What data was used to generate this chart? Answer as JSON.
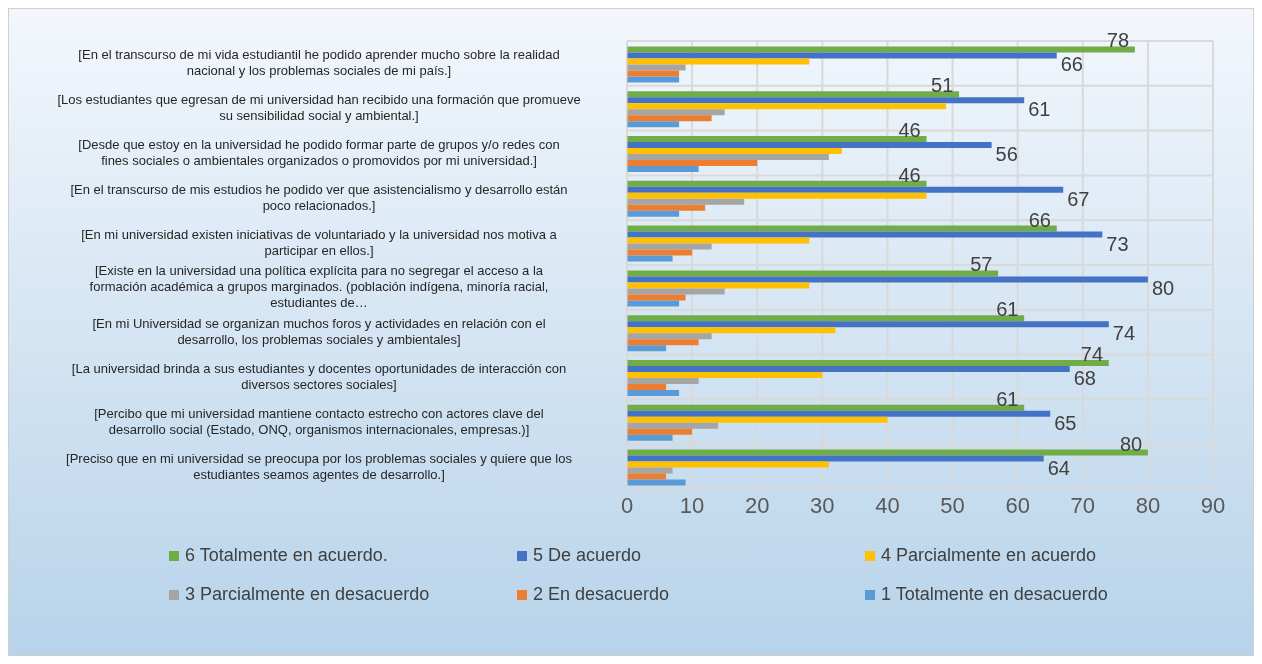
{
  "chart_data": {
    "type": "bar",
    "orientation": "horizontal",
    "categories": [
      "[En el transcurso de mi vida estudiantil he podido aprender mucho sobre la realidad nacional y los problemas sociales de mi país.]",
      "[Los estudiantes que egresan de mi universidad han recibido una formación que promueve su sensibilidad social y ambiental.]",
      "[Desde que estoy en la universidad he podido formar parte de grupos y/o redes con fines sociales o ambientales organizados o promovidos por mi universidad.]",
      "[En el transcurso de mis estudios he podido ver que asistencialismo y desarrollo están poco relacionados.]",
      "[En mi universidad existen iniciativas de voluntariado y la universidad nos motiva a participar en ellos.]",
      "[Existe en la universidad una política explícita para no segregar el acceso a la formación académica a grupos marginados. (población indígena, minoría racial, estudiantes de…",
      "[En mi Universidad se organizan muchos foros y actividades en relación con el desarrollo, los problemas sociales y ambientales]",
      "[La universidad brinda a sus estudiantes y docentes oportunidades de interacción con diversos sectores sociales]",
      "[Percibo que mi universidad mantiene contacto estrecho con actores clave del desarrollo social (Estado, ONQ, organismos internacionales, empresas.)]",
      "[Preciso que en mi universidad se preocupa por los problemas sociales y quiere que los estudiantes seamos agentes de desarrollo.]"
    ],
    "series": [
      {
        "name": "6 Totalmente en acuerdo.",
        "color": "#70ad47",
        "values": [
          78,
          51,
          46,
          46,
          66,
          57,
          61,
          74,
          61,
          80
        ],
        "value_labels": [
          "78",
          "51",
          "46",
          "46",
          "66",
          "57",
          "61",
          "74",
          "61",
          "80"
        ]
      },
      {
        "name": "5 De acuerdo",
        "color": "#4472c4",
        "values": [
          66,
          61,
          56,
          67,
          73,
          80,
          74,
          68,
          65,
          64
        ],
        "value_labels": [
          "66",
          "61",
          "56",
          "67",
          "73",
          "80",
          "74",
          "68",
          "65",
          "64"
        ]
      },
      {
        "name": "4 Parcialmente en acuerdo",
        "color": "#ffc000",
        "values": [
          28,
          49,
          33,
          46,
          28,
          28,
          32,
          30,
          40,
          31
        ]
      },
      {
        "name": "3 Parcialmente en desacuerdo",
        "color": "#a5a5a5",
        "values": [
          9,
          15,
          31,
          18,
          13,
          15,
          13,
          11,
          14,
          7
        ]
      },
      {
        "name": "2 En desacuerdo",
        "color": "#ed7d31",
        "values": [
          8,
          13,
          20,
          12,
          10,
          9,
          11,
          6,
          10,
          6
        ]
      },
      {
        "name": "1 Totalmente en desacuerdo",
        "color": "#5b9bd5",
        "values": [
          8,
          8,
          11,
          8,
          7,
          8,
          6,
          8,
          7,
          9
        ]
      }
    ],
    "xlim": [
      0,
      90
    ],
    "xticks": [
      0,
      10,
      20,
      30,
      40,
      50,
      60,
      70,
      80,
      90
    ],
    "grid": true,
    "legend": "bottom"
  }
}
